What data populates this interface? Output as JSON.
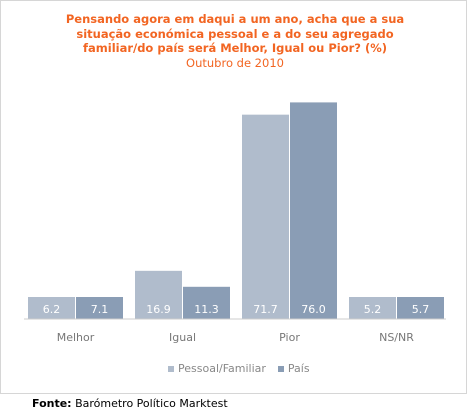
{
  "title": "Pensando agora em daqui a um ano, acha que a sua situação económica pessoal e a do seu agregado familiar/do país será Melhor, Igual ou Pior? (%)",
  "subtitle": "Outubro de 2010",
  "source_label": "Fonte:",
  "source_text": "Barómetro Político Marktest",
  "colors": {
    "series1": "#b0bccc",
    "series2": "#8a9db5",
    "title": "#f26522"
  },
  "chart_data": {
    "type": "bar",
    "title": "Pensando agora em daqui a um ano, acha que a sua situação económica pessoal e a do seu agregado familiar/do país será Melhor, Igual ou Pior? (%)",
    "subtitle": "Outubro de 2010",
    "categories": [
      "Melhor",
      "Igual",
      "Pior",
      "NS/NR"
    ],
    "series": [
      {
        "name": "Pessoal/Familiar",
        "values": [
          6.2,
          16.9,
          71.7,
          5.2
        ]
      },
      {
        "name": "País",
        "values": [
          7.1,
          11.3,
          76.0,
          5.7
        ]
      }
    ],
    "value_labels": [
      [
        "6.2",
        "16.9",
        "71.7",
        "5.2"
      ],
      [
        "7.1",
        "11.3",
        "76.0",
        "5.7"
      ]
    ],
    "ylim": [
      0,
      80
    ],
    "grid": false,
    "legend": "bottom"
  }
}
